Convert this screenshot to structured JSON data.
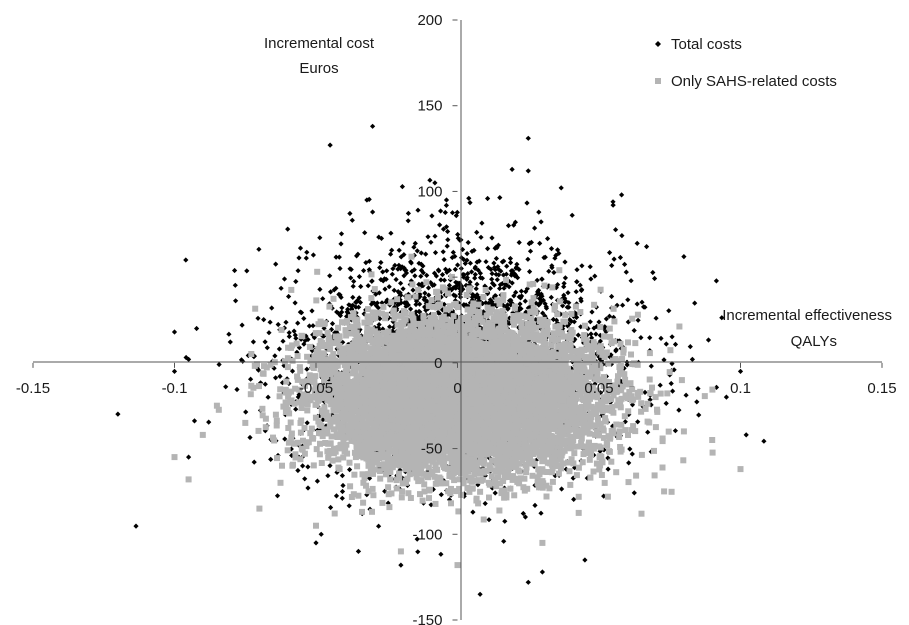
{
  "chart_data": {
    "type": "scatter",
    "title": "",
    "x_axis": {
      "title_lines": [
        "Incremental effectiveness",
        "QALYs"
      ],
      "min": -0.15,
      "max": 0.15,
      "ticks": [
        -0.15,
        -0.1,
        -0.05,
        0,
        0.05,
        0.1,
        0.15
      ],
      "tick_labels": [
        "-0.15",
        "-0.1",
        "-0.05",
        "0",
        "0.05",
        "0.1",
        "0.15"
      ]
    },
    "y_axis": {
      "title_lines": [
        "Incremental cost",
        "Euros"
      ],
      "min": -150,
      "max": 200,
      "ticks": [
        -150,
        -100,
        -50,
        0,
        50,
        100,
        150,
        200
      ],
      "tick_labels": [
        "-150",
        "-100",
        "-50",
        "0",
        "",
        "100",
        "150",
        "200"
      ]
    },
    "grid": false,
    "legend": {
      "position": "top-right",
      "entries": [
        "Total costs",
        "Only SAHS-related costs"
      ]
    },
    "series": [
      {
        "name": "Total costs",
        "color": "#000000",
        "marker": "diamond",
        "count": 3200,
        "center": [
          0,
          0
        ],
        "sd": [
          0.029,
          34
        ],
        "extreme_points": [
          [
            -0.096,
            60
          ],
          [
            -0.1,
            18
          ],
          [
            -0.095,
            2
          ],
          [
            -0.06,
            78
          ],
          [
            -0.03,
            138
          ],
          [
            -0.045,
            127
          ],
          [
            -0.032,
            95
          ],
          [
            -0.03,
            88
          ],
          [
            -0.008,
            105
          ],
          [
            0.004,
            96
          ],
          [
            0.025,
            131
          ],
          [
            0.025,
            112
          ],
          [
            0.058,
            98
          ],
          [
            0.055,
            92
          ],
          [
            0.08,
            62
          ],
          [
            0.083,
            2
          ],
          [
            0.1,
            -5
          ],
          [
            0.095,
            -20
          ],
          [
            0.102,
            -42
          ],
          [
            0.085,
            -15
          ],
          [
            0.075,
            -7
          ],
          [
            -0.1,
            -5
          ],
          [
            -0.095,
            -55
          ],
          [
            0.008,
            -135
          ],
          [
            0.025,
            -128
          ],
          [
            -0.02,
            -118
          ],
          [
            -0.035,
            -110
          ],
          [
            0.03,
            -122
          ],
          [
            0.045,
            -115
          ],
          [
            -0.05,
            -105
          ]
        ]
      },
      {
        "name": "Only SAHS-related costs",
        "color": "#b4b4b4",
        "marker": "square",
        "count": 9000,
        "center": [
          0,
          -20
        ],
        "sd": [
          0.024,
          21
        ],
        "extreme_points": [
          [
            -0.1,
            -55
          ],
          [
            -0.095,
            -68
          ],
          [
            -0.09,
            -42
          ],
          [
            -0.085,
            -25
          ],
          [
            -0.075,
            -35
          ],
          [
            -0.07,
            -85
          ],
          [
            -0.05,
            -95
          ],
          [
            0.1,
            -62
          ],
          [
            0.09,
            -45
          ],
          [
            0.08,
            -40
          ],
          [
            0.073,
            -75
          ],
          [
            0.065,
            -88
          ],
          [
            -0.03,
            12
          ],
          [
            0.03,
            15
          ],
          [
            0.04,
            10
          ],
          [
            -0.045,
            8
          ],
          [
            0.0,
            -118
          ],
          [
            0.03,
            -105
          ],
          [
            -0.02,
            -110
          ],
          [
            0.052,
            -70
          ],
          [
            -0.062,
            -60
          ],
          [
            0.07,
            -20
          ]
        ]
      }
    ]
  }
}
